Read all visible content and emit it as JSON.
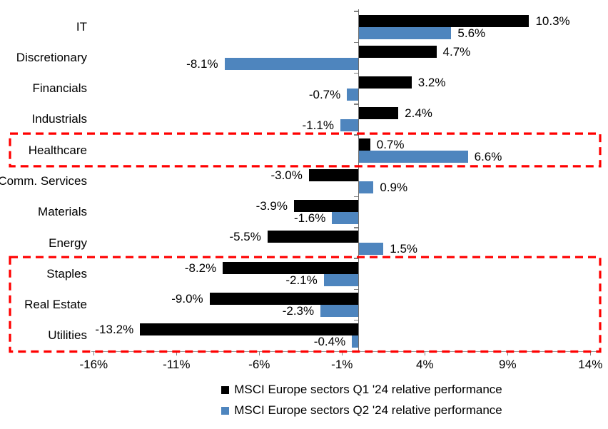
{
  "chart_data": {
    "type": "bar",
    "orientation": "horizontal",
    "categories": [
      "IT",
      "Discretionary",
      "Financials",
      "Industrials",
      "Healthcare",
      "Comm. Services",
      "Materials",
      "Energy",
      "Staples",
      "Real Estate",
      "Utilities"
    ],
    "series": [
      {
        "name": "MSCI Europe sectors Q1 '24 relative performance",
        "color": "#000000",
        "values": [
          10.3,
          4.7,
          3.2,
          2.4,
          0.7,
          -3.0,
          -3.9,
          -5.5,
          -8.2,
          -9.0,
          -13.2
        ],
        "labels": [
          "10.3%",
          "4.7%",
          "3.2%",
          "2.4%",
          "0.7%",
          "-3.0%",
          "-3.9%",
          "-5.5%",
          "-8.2%",
          "-9.0%",
          "-13.2%"
        ]
      },
      {
        "name": "MSCI Europe sectors Q2 '24 relative performance",
        "color": "#4E85BE",
        "values": [
          5.6,
          -8.1,
          -0.7,
          -1.1,
          6.6,
          0.9,
          -1.6,
          1.5,
          -2.1,
          -2.3,
          -0.4
        ],
        "labels": [
          "5.6%",
          "-8.1%",
          "-0.7%",
          "-1.1%",
          "6.6%",
          "0.9%",
          "-1.6%",
          "1.5%",
          "-2.1%",
          "-2.3%",
          "-0.4%"
        ]
      }
    ],
    "x_axis": {
      "tick_values": [
        -16,
        -11,
        -6,
        -1,
        4,
        9,
        14
      ],
      "tick_labels": [
        "-16%",
        "-11%",
        "-6%",
        "-1%",
        "4%",
        "9%",
        "14%"
      ],
      "unit": "%"
    },
    "xlim": [
      -16,
      14
    ],
    "grid": false,
    "legend_position": "bottom-center",
    "highlights": [
      {
        "name": "healthcare-highlight",
        "categories": [
          "Healthcare"
        ],
        "row_start": 4,
        "row_end": 4,
        "color": "#FF0000",
        "style": "dashed-box"
      },
      {
        "name": "defensives-highlight",
        "categories": [
          "Staples",
          "Real Estate",
          "Utilities"
        ],
        "row_start": 8,
        "row_end": 10,
        "color": "#FF0000",
        "style": "dashed-box"
      }
    ]
  }
}
